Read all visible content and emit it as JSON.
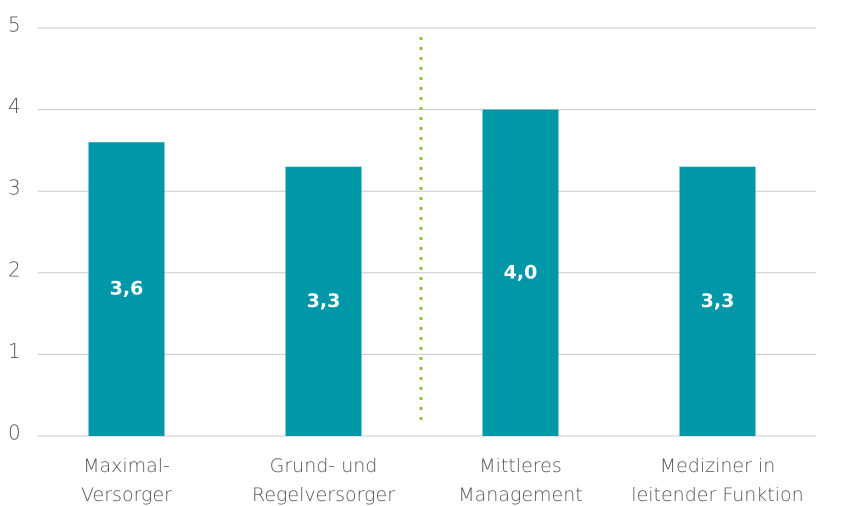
{
  "chart_data": {
    "type": "bar",
    "categories": [
      "Maximal-\nVersorger",
      "Grund- und\nRegelversorger",
      "Mittleres\nManagement",
      "Mediziner in\nleitender Funktion"
    ],
    "values": [
      3.6,
      3.3,
      4.0,
      3.3
    ],
    "value_labels": [
      "3,6",
      "3,3",
      "4,0",
      "3,3"
    ],
    "color": "#0097a9",
    "ylim": [
      0,
      5
    ],
    "yticks": [
      0,
      1,
      2,
      3,
      4,
      5
    ],
    "grid": true
  }
}
